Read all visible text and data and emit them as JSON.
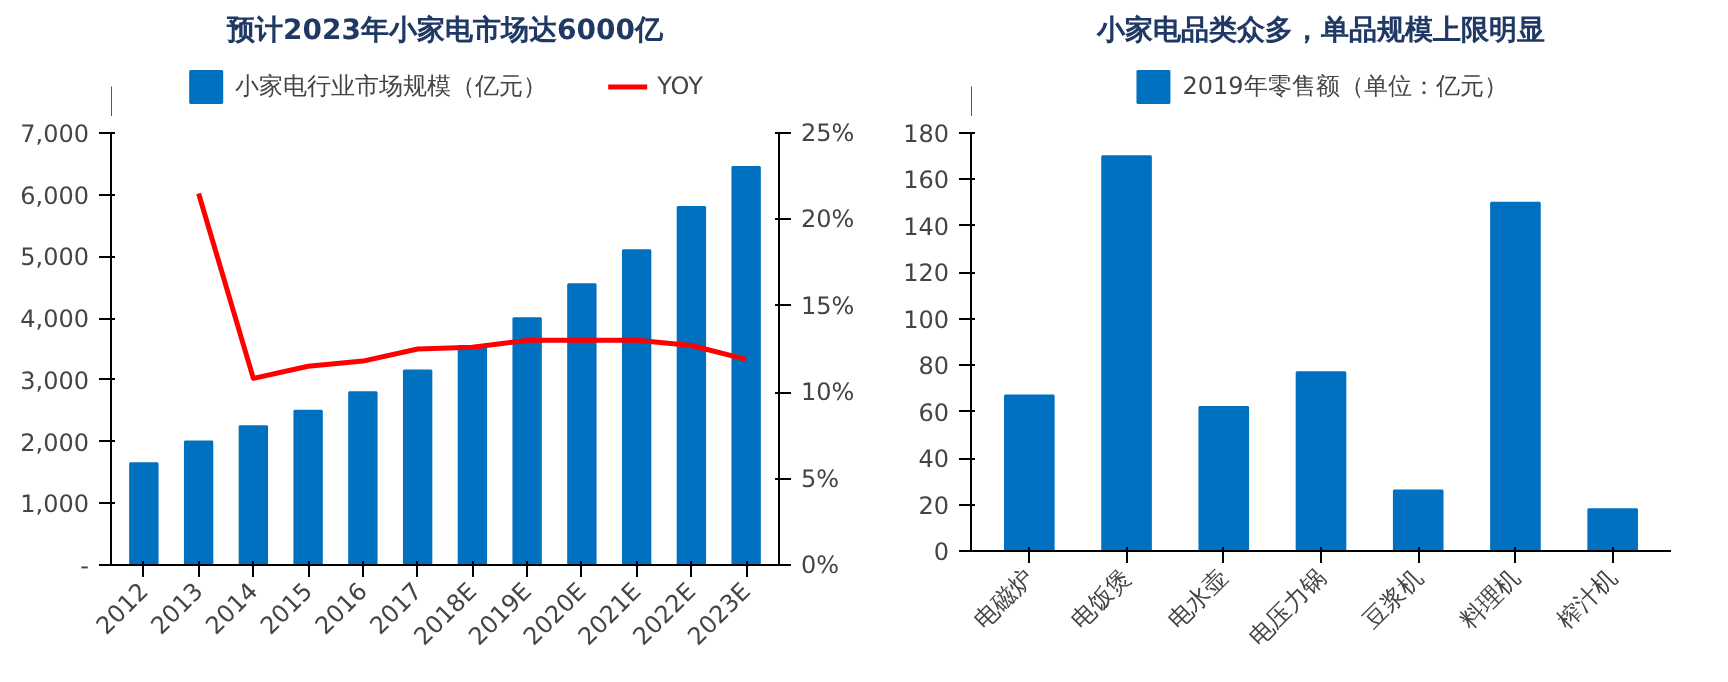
{
  "chart_data": [
    {
      "type": "bar",
      "title": "预计2023年小家电市场达6000亿",
      "categories": [
        "2012",
        "2013",
        "2014",
        "2015",
        "2016",
        "2017",
        "2018E",
        "2019E",
        "2020E",
        "2021E",
        "2022E",
        "2023E"
      ],
      "series": [
        {
          "name": "小家电行业市场规模（亿元）",
          "color": "#0070c0",
          "values": [
            1650,
            2000,
            2250,
            2500,
            2800,
            3150,
            3550,
            4000,
            4550,
            5100,
            5800,
            6450
          ]
        },
        {
          "name": "YOY",
          "type": "line",
          "axis": "y2",
          "color": "#ff0000",
          "values": [
            null,
            21.5,
            10.8,
            11.5,
            11.8,
            12.5,
            12.6,
            13.0,
            13.0,
            13.0,
            12.7,
            11.9
          ]
        }
      ],
      "ylim": [
        0,
        7000
      ],
      "yticks": [
        {
          "value": 0,
          "label": "-"
        },
        {
          "value": 1000,
          "label": "1,000"
        },
        {
          "value": 2000,
          "label": "2,000"
        },
        {
          "value": 3000,
          "label": "3,000"
        },
        {
          "value": 4000,
          "label": "4,000"
        },
        {
          "value": 5000,
          "label": "5,000"
        },
        {
          "value": 6000,
          "label": "6,000"
        },
        {
          "value": 7000,
          "label": "7,000"
        }
      ],
      "y2lim": [
        0,
        25
      ],
      "y2ticks": [
        {
          "value": 0,
          "label": "0%"
        },
        {
          "value": 5,
          "label": "5%"
        },
        {
          "value": 10,
          "label": "10%"
        },
        {
          "value": 15,
          "label": "15%"
        },
        {
          "value": 20,
          "label": "20%"
        },
        {
          "value": 25,
          "label": "25%"
        }
      ],
      "legend": "top",
      "grid": false
    },
    {
      "type": "bar",
      "title": "小家电品类众多，单品规模上限明显",
      "categories": [
        "电磁炉",
        "电饭煲",
        "电水壶",
        "电压力锅",
        "豆浆机",
        "料理机",
        "榨汁机"
      ],
      "series": [
        {
          "name": "2019年零售额（单位：亿元）",
          "color": "#0070c0",
          "values": [
            67,
            170,
            62,
            77,
            26,
            150,
            18
          ]
        }
      ],
      "ylim": [
        0,
        180
      ],
      "yticks": [
        0,
        20,
        40,
        60,
        80,
        100,
        120,
        140,
        160,
        180
      ],
      "legend": "top",
      "grid": false
    }
  ]
}
